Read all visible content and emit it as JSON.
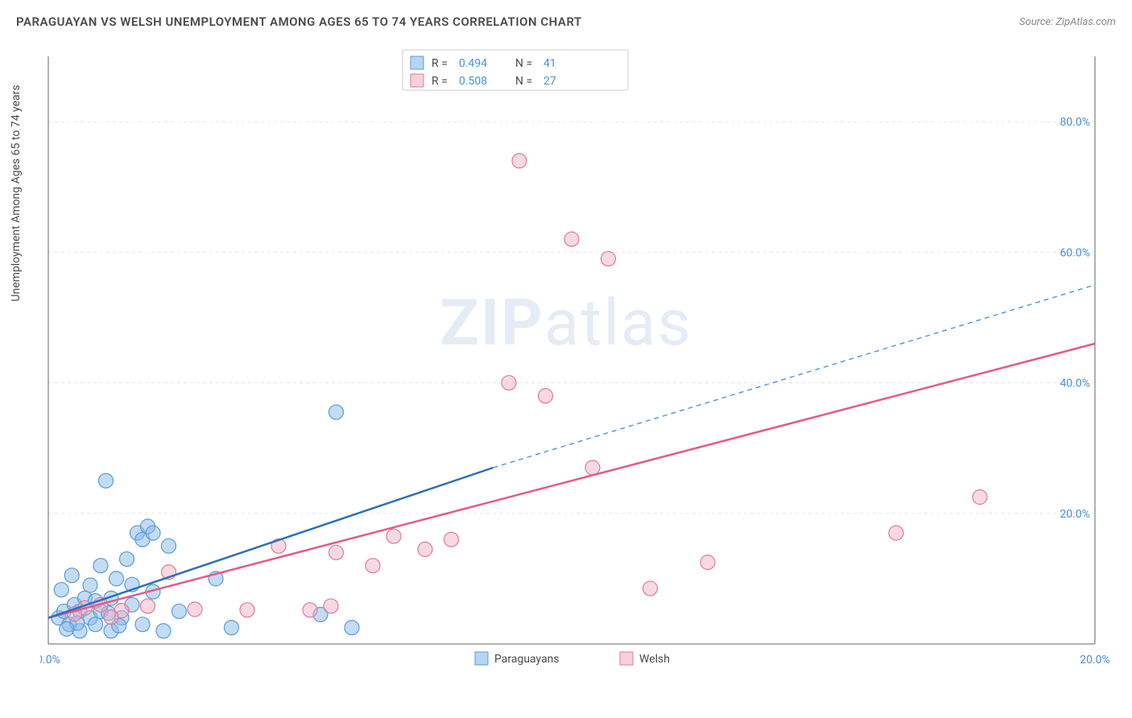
{
  "title": "PARAGUAYAN VS WELSH UNEMPLOYMENT AMONG AGES 65 TO 74 YEARS CORRELATION CHART",
  "source": "Source: ZipAtlas.com",
  "ylabel": "Unemployment Among Ages 65 to 74 years",
  "watermark_zip": "ZIP",
  "watermark_atlas": "atlas",
  "chart": {
    "type": "scatter",
    "xlim": [
      0,
      20
    ],
    "ylim": [
      0,
      90
    ],
    "x_ticks": [
      0,
      20
    ],
    "x_tick_labels": [
      "0.0%",
      "20.0%"
    ],
    "y_ticks": [
      20,
      40,
      60,
      80
    ],
    "y_tick_labels": [
      "20.0%",
      "40.0%",
      "60.0%",
      "80.0%"
    ],
    "background_color": "#ffffff",
    "grid_color": "#e5e5e5",
    "axis_color": "#666666",
    "marker_radius": 9,
    "colors": {
      "blue_fill": "rgba(135,185,235,0.5)",
      "blue_stroke": "#5b9bd5",
      "blue_trend": "#2c6fbb",
      "pink_fill": "rgba(240,170,190,0.45)",
      "pink_stroke": "#e07a9a",
      "pink_trend": "#e55a8a",
      "value_text": "#4a90d9",
      "label_text": "#4a4a4a"
    },
    "series": [
      {
        "name": "Paraguayans",
        "key": "blue",
        "R": "0.494",
        "N": "41",
        "trend": {
          "x0": 0,
          "y0": 4,
          "x1_solid": 8.5,
          "y1_solid": 27,
          "x1": 20,
          "y1": 55
        },
        "points": [
          [
            0.2,
            4
          ],
          [
            0.3,
            5
          ],
          [
            0.4,
            3
          ],
          [
            0.5,
            6
          ],
          [
            0.6,
            2
          ],
          [
            0.6,
            5
          ],
          [
            0.7,
            7
          ],
          [
            0.8,
            4
          ],
          [
            0.8,
            9
          ],
          [
            0.9,
            3
          ],
          [
            1.0,
            12
          ],
          [
            1.0,
            5
          ],
          [
            1.1,
            25
          ],
          [
            1.2,
            7
          ],
          [
            1.2,
            2
          ],
          [
            1.3,
            10
          ],
          [
            1.4,
            4
          ],
          [
            1.5,
            13
          ],
          [
            1.6,
            6
          ],
          [
            1.7,
            17
          ],
          [
            1.8,
            16
          ],
          [
            1.8,
            3
          ],
          [
            1.9,
            18
          ],
          [
            2.0,
            8
          ],
          [
            2.0,
            17
          ],
          [
            2.2,
            2
          ],
          [
            2.3,
            15
          ],
          [
            2.5,
            5
          ],
          [
            3.2,
            10
          ],
          [
            3.5,
            2.5
          ],
          [
            5.2,
            4.5
          ],
          [
            5.5,
            35.5
          ],
          [
            5.8,
            2.5
          ],
          [
            0.25,
            8.3
          ],
          [
            0.45,
            10.5
          ],
          [
            0.55,
            3.2
          ],
          [
            0.35,
            2.3
          ],
          [
            0.9,
            6.6
          ],
          [
            1.15,
            4.7
          ],
          [
            1.35,
            2.8
          ],
          [
            1.6,
            9.1
          ]
        ]
      },
      {
        "name": "Welsh",
        "key": "pink",
        "R": "0.508",
        "N": "27",
        "trend": {
          "x0": 0,
          "y0": 4,
          "x1": 20,
          "y1": 46
        },
        "points": [
          [
            0.7,
            5.5
          ],
          [
            1.0,
            6
          ],
          [
            1.4,
            5.1
          ],
          [
            1.9,
            5.8
          ],
          [
            2.3,
            11
          ],
          [
            2.8,
            5.3
          ],
          [
            3.8,
            5.2
          ],
          [
            4.4,
            15
          ],
          [
            5.0,
            5.2
          ],
          [
            5.4,
            5.8
          ],
          [
            5.5,
            14
          ],
          [
            6.2,
            12
          ],
          [
            6.6,
            16.5
          ],
          [
            7.2,
            14.5
          ],
          [
            7.7,
            16
          ],
          [
            8.8,
            40
          ],
          [
            9.0,
            74
          ],
          [
            9.5,
            38
          ],
          [
            10.0,
            62
          ],
          [
            10.4,
            27
          ],
          [
            10.7,
            59
          ],
          [
            11.5,
            8.5
          ],
          [
            12.6,
            12.5
          ],
          [
            16.2,
            17
          ],
          [
            17.8,
            22.5
          ],
          [
            1.2,
            4.1
          ],
          [
            0.5,
            4.6
          ]
        ]
      }
    ],
    "legend_top": {
      "R_label": "R =",
      "N_label": "N ="
    },
    "legend_bottom": {
      "items": [
        "Paraguayans",
        "Welsh"
      ]
    }
  }
}
